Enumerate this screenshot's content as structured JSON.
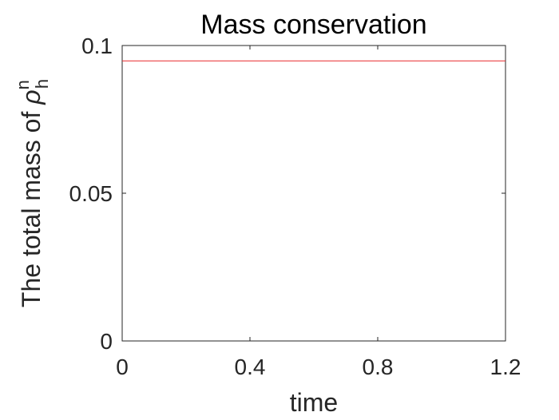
{
  "chart_data": {
    "type": "line",
    "title": "Mass conservation",
    "xlabel": "time",
    "ylabel": {
      "prefix": "The total mass of ",
      "symbol": "ρ",
      "subscript": "h",
      "superscript": "n"
    },
    "xlim": [
      0,
      1.2
    ],
    "ylim": [
      0,
      0.1
    ],
    "xticks": [
      0,
      0.4,
      0.8,
      1.2
    ],
    "xtick_labels": [
      "0",
      "0.4",
      "0.8",
      "1.2"
    ],
    "yticks": [
      0,
      0.05,
      0.1
    ],
    "ytick_labels": [
      "0",
      "0.05",
      "0.1"
    ],
    "grid": false,
    "series": [
      {
        "color": "#e8282b",
        "x": [
          0,
          1.2
        ],
        "y": [
          0.0948,
          0.0948
        ]
      }
    ]
  }
}
